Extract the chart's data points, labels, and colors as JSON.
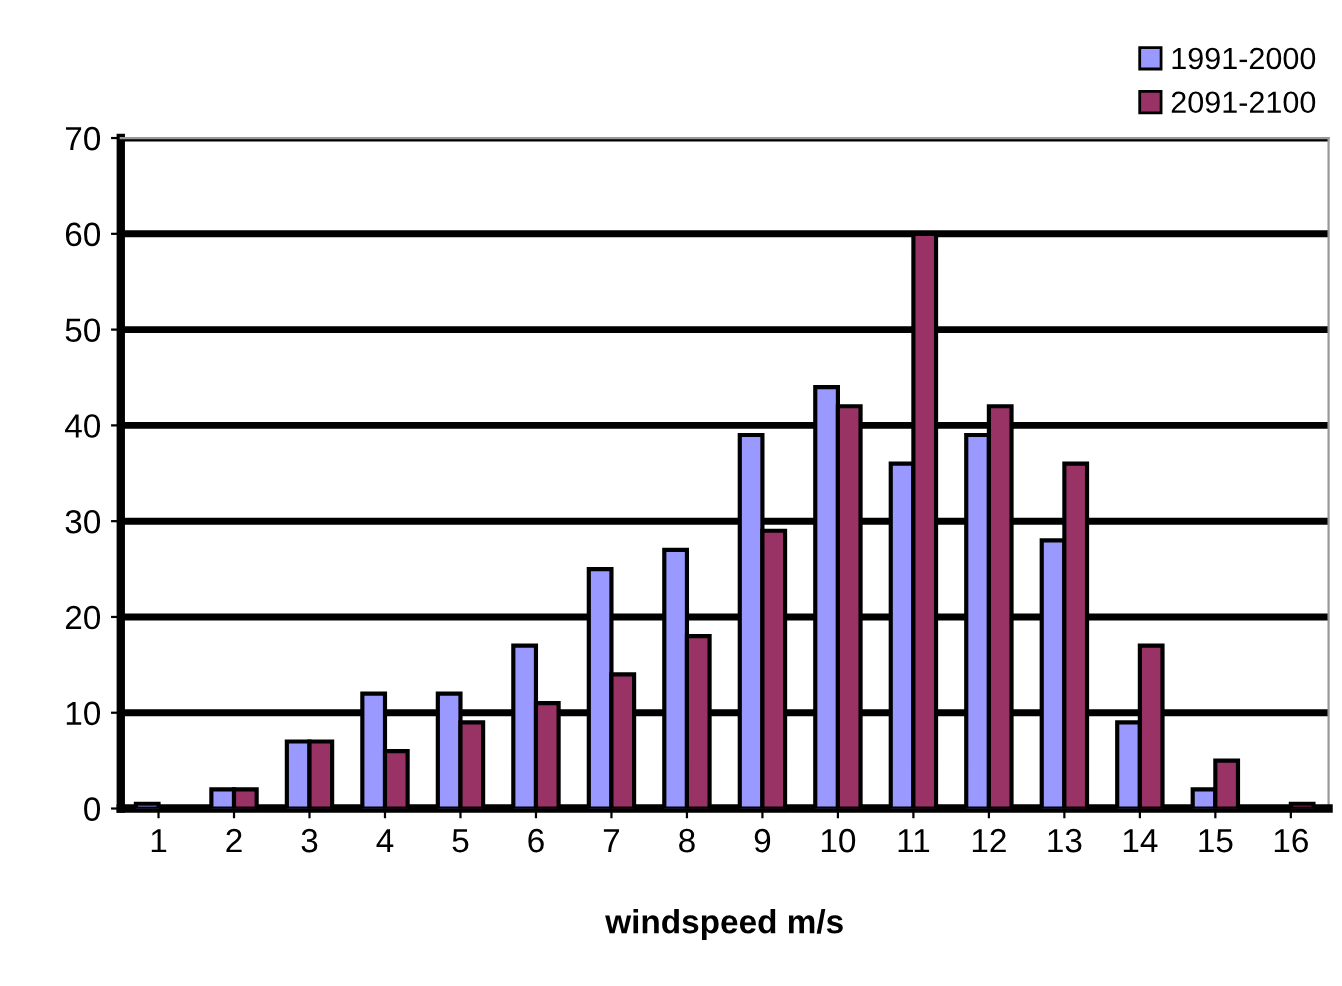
{
  "chart_data": {
    "type": "bar",
    "xlabel": "windspeed m/s",
    "categories": [
      "1",
      "2",
      "3",
      "4",
      "5",
      "6",
      "7",
      "8",
      "9",
      "10",
      "11",
      "12",
      "13",
      "14",
      "15",
      "16"
    ],
    "series": [
      {
        "name": "1991-2000",
        "color": "#9999ff",
        "values": [
          0.5,
          2,
          7,
          12,
          12,
          17,
          25,
          27,
          39,
          44,
          36,
          39,
          28,
          9,
          2,
          null
        ]
      },
      {
        "name": "2091-2100",
        "color": "#993366",
        "values": [
          null,
          2,
          7,
          6,
          9,
          11,
          14,
          18,
          29,
          42,
          60,
          42,
          36,
          17,
          5,
          0.5
        ]
      }
    ],
    "ylim": [
      0,
      70
    ],
    "yticks": [
      0,
      10,
      20,
      30,
      40,
      50,
      60,
      70
    ],
    "grid": "y",
    "legend": "top right"
  }
}
